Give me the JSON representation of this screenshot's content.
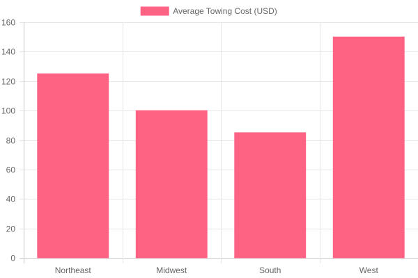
{
  "chart_data": {
    "type": "bar",
    "categories": [
      "Northeast",
      "Midwest",
      "South",
      "West"
    ],
    "series": [
      {
        "name": "Average Towing Cost (USD)",
        "values": [
          125,
          100,
          85,
          150
        ]
      }
    ],
    "ylim": [
      0,
      160
    ],
    "y_ticks": [
      0,
      20,
      40,
      60,
      80,
      100,
      120,
      140,
      160
    ],
    "legend_position": "top-center",
    "grid": true,
    "colors": {
      "bar_fill": "#ff6384",
      "bar_border": "#ff6384",
      "grid": "#e5e5e5",
      "axis": "#c8c8c8",
      "text": "#666666"
    }
  }
}
